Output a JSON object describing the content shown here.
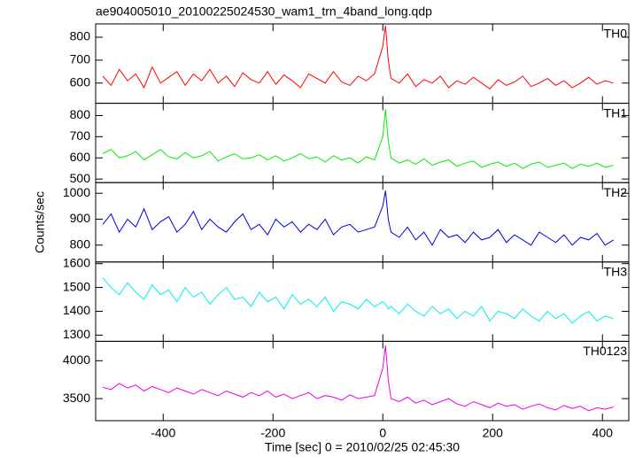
{
  "chart_data": {
    "type": "line",
    "title": "ae904005010_20100225024530_wam1_trn_4band_long.qdp",
    "xlabel": "Time [sec] 0 = 2010/02/25 02:45:30",
    "ylabel": "Counts/sec",
    "xlim": [
      -523,
      448
    ],
    "xticks": [
      -400,
      -200,
      0,
      200,
      400
    ],
    "x": [
      -510,
      -495,
      -480,
      -465,
      -450,
      -435,
      -420,
      -405,
      -390,
      -375,
      -360,
      -345,
      -330,
      -315,
      -300,
      -285,
      -270,
      -255,
      -240,
      -225,
      -210,
      -195,
      -180,
      -165,
      -150,
      -135,
      -120,
      -105,
      -90,
      -75,
      -60,
      -45,
      -30,
      -15,
      0,
      5,
      10,
      15,
      30,
      45,
      60,
      75,
      90,
      105,
      120,
      135,
      150,
      165,
      180,
      195,
      210,
      225,
      240,
      255,
      270,
      285,
      300,
      315,
      330,
      345,
      360,
      375,
      390,
      405,
      420
    ],
    "series": [
      {
        "name": "TH0",
        "color": "#ff0000",
        "ylim": [
          512,
          858
        ],
        "yticks": [
          600,
          700,
          800
        ],
        "values": [
          630,
          590,
          660,
          610,
          640,
          580,
          670,
          600,
          625,
          650,
          590,
          640,
          610,
          660,
          600,
          630,
          585,
          645,
          615,
          600,
          650,
          595,
          635,
          610,
          580,
          640,
          620,
          600,
          650,
          605,
          590,
          630,
          610,
          640,
          760,
          850,
          700,
          620,
          600,
          640,
          585,
          615,
          600,
          630,
          580,
          610,
          595,
          625,
          600,
          575,
          615,
          590,
          605,
          630,
          585,
          600,
          620,
          590,
          610,
          580,
          600,
          625,
          595,
          610,
          600
        ]
      },
      {
        "name": "TH1",
        "color": "#00ee00",
        "ylim": [
          483,
          858
        ],
        "yticks": [
          500,
          600,
          700,
          800
        ],
        "values": [
          620,
          640,
          600,
          610,
          630,
          590,
          615,
          640,
          605,
          595,
          625,
          600,
          610,
          630,
          585,
          605,
          620,
          595,
          600,
          615,
          590,
          610,
          585,
          600,
          620,
          595,
          605,
          580,
          610,
          590,
          600,
          575,
          605,
          590,
          700,
          830,
          680,
          600,
          575,
          590,
          570,
          595,
          565,
          580,
          590,
          560,
          575,
          585,
          555,
          570,
          580,
          560,
          575,
          550,
          570,
          580,
          555,
          565,
          575,
          550,
          570,
          560,
          575,
          555,
          565
        ]
      },
      {
        "name": "TH2",
        "color": "#0000dd",
        "ylim": [
          735,
          1041
        ],
        "yticks": [
          800,
          900,
          1000
        ],
        "values": [
          880,
          920,
          850,
          900,
          870,
          940,
          860,
          890,
          910,
          850,
          880,
          930,
          860,
          900,
          870,
          850,
          890,
          920,
          860,
          880,
          840,
          900,
          870,
          890,
          850,
          880,
          860,
          900,
          840,
          870,
          880,
          850,
          860,
          870,
          950,
          1010,
          900,
          850,
          830,
          870,
          820,
          850,
          800,
          860,
          830,
          840,
          810,
          850,
          820,
          830,
          860,
          810,
          840,
          820,
          800,
          850,
          830,
          810,
          840,
          800,
          830,
          820,
          845,
          800,
          820
        ]
      },
      {
        "name": "TH3",
        "color": "#00eeee",
        "ylim": [
          1274,
          1607
        ],
        "yticks": [
          1300,
          1400,
          1500,
          1600
        ],
        "values": [
          1540,
          1500,
          1470,
          1520,
          1480,
          1450,
          1510,
          1470,
          1490,
          1440,
          1500,
          1460,
          1480,
          1430,
          1470,
          1500,
          1450,
          1460,
          1420,
          1480,
          1440,
          1460,
          1410,
          1470,
          1430,
          1450,
          1420,
          1460,
          1400,
          1440,
          1430,
          1410,
          1450,
          1420,
          1440,
          1430,
          1410,
          1420,
          1390,
          1430,
          1400,
          1380,
          1420,
          1390,
          1410,
          1370,
          1400,
          1380,
          1420,
          1360,
          1400,
          1390,
          1370,
          1410,
          1380,
          1360,
          1400,
          1370,
          1390,
          1350,
          1380,
          1400,
          1360,
          1380,
          1370
        ]
      },
      {
        "name": "TH0123",
        "color": "#ee00ee",
        "ylim": [
          3209,
          4256
        ],
        "yticks": [
          3500,
          4000
        ],
        "values": [
          3650,
          3620,
          3700,
          3640,
          3680,
          3600,
          3660,
          3620,
          3580,
          3640,
          3600,
          3560,
          3620,
          3580,
          3540,
          3600,
          3560,
          3520,
          3580,
          3540,
          3600,
          3520,
          3560,
          3500,
          3540,
          3580,
          3500,
          3540,
          3520,
          3480,
          3550,
          3500,
          3520,
          3540,
          3900,
          4200,
          3750,
          3500,
          3460,
          3520,
          3440,
          3480,
          3420,
          3460,
          3500,
          3430,
          3400,
          3460,
          3420,
          3380,
          3440,
          3400,
          3420,
          3360,
          3400,
          3430,
          3380,
          3350,
          3410,
          3370,
          3400,
          3340,
          3380,
          3360,
          3390
        ]
      }
    ]
  }
}
